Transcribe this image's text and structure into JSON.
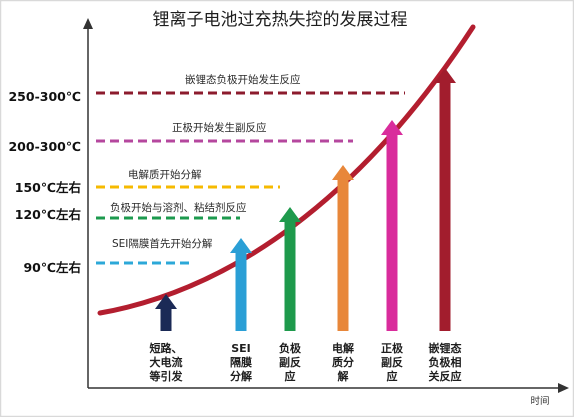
{
  "title": "锂离子电池过充热失控的发展过程",
  "x_axis_label": "时间",
  "axis_color": "#333333",
  "curve_color": "#B31E2F",
  "thresholds": [
    {
      "temperature": "250-300℃",
      "note": "嵌锂态负极开始发生反应",
      "color": "#8C1B2D"
    },
    {
      "temperature": "200-300℃",
      "note": "正极开始发生副反应",
      "color": "#B5479E"
    },
    {
      "temperature": "150℃左右",
      "note": "电解质开始分解",
      "color": "#F6BA00"
    },
    {
      "temperature": "120℃左右",
      "note": "负极开始与溶剂、粘结剂反应",
      "color": "#1C9A4E"
    },
    {
      "temperature": "90℃左右",
      "note": "SEI隔膜首先开始分解",
      "color": "#2CA8D8"
    }
  ],
  "stages": [
    {
      "label_lines": [
        "短路、",
        "大电流",
        "等引发"
      ],
      "color": "#1B2A56"
    },
    {
      "label_lines": [
        "SEI",
        "隔膜",
        "分解"
      ],
      "color": "#2A9FD6"
    },
    {
      "label_lines": [
        "负极",
        "副反",
        "应"
      ],
      "color": "#1E9A4C"
    },
    {
      "label_lines": [
        "电解",
        "质分",
        "解"
      ],
      "color": "#E8873A"
    },
    {
      "label_lines": [
        "正极",
        "副反",
        "应"
      ],
      "color": "#D92C9C"
    },
    {
      "label_lines": [
        "嵌锂态",
        "负极相",
        "关反应"
      ],
      "color": "#A21D2D"
    }
  ]
}
